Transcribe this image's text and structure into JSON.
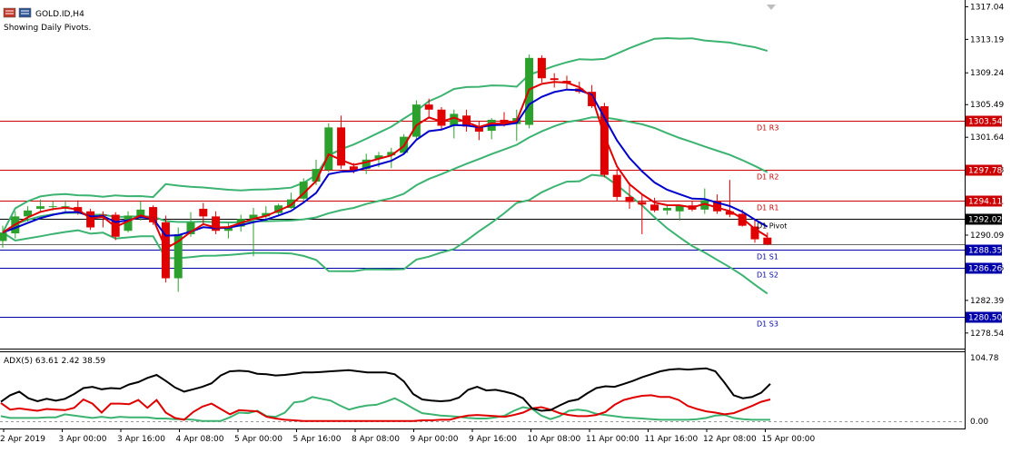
{
  "header": {
    "symbol_label": "GOLD.ID,H4",
    "pivots_note": "Showing Daily Pivots."
  },
  "adx": {
    "label": "ADX(5) 63.61 2.42 38.59",
    "axis_top_label": "104.78",
    "axis_bottom_label": "0.00"
  },
  "colors": {
    "bull": "#2ca02c",
    "bear": "#e00000",
    "ma_fast": "#e00000",
    "ma_slow": "#0000cc",
    "bollinger": "#3cb371",
    "resistance": "#cc0000",
    "support": "#0000aa",
    "pivot": "#000000",
    "adx_main": "#000000",
    "adx_minus": "#e00000",
    "adx_plus": "#3cb371"
  },
  "chart_data": {
    "type": "candlestick",
    "title": "GOLD.ID,H4",
    "y_ticks": [
      "1317.04",
      "1313.19",
      "1309.24",
      "1305.49",
      "1301.64",
      "1297.78",
      "1294.11",
      "1290.09",
      "1286.26",
      "1282.39",
      "1278.54"
    ],
    "ylim": [
      1276.7,
      1317.3
    ],
    "x_ticks": [
      "2 Apr 2019",
      "3 Apr 00:00",
      "3 Apr 16:00",
      "4 Apr 08:00",
      "5 Apr 00:00",
      "5 Apr 16:00",
      "8 Apr 08:00",
      "9 Apr 00:00",
      "9 Apr 16:00",
      "10 Apr 08:00",
      "11 Apr 00:00",
      "11 Apr 16:00",
      "12 Apr 08:00",
      "15 Apr 00:00"
    ],
    "candles": [
      [
        1289.4,
        1291.2,
        1288.6,
        1290.4
      ],
      [
        1290.3,
        1292.9,
        1289.7,
        1292.3
      ],
      [
        1292.3,
        1293.5,
        1291.7,
        1293.0
      ],
      [
        1293.2,
        1294.3,
        1292.9,
        1293.5
      ],
      [
        1293.5,
        1294.1,
        1293.0,
        1293.5
      ],
      [
        1293.5,
        1294.2,
        1292.9,
        1293.5
      ],
      [
        1293.4,
        1294.2,
        1292.5,
        1292.9
      ],
      [
        1292.9,
        1293.2,
        1290.7,
        1291.0
      ],
      [
        1292.5,
        1292.9,
        1291.0,
        1292.4
      ],
      [
        1292.5,
        1292.8,
        1289.5,
        1289.9
      ],
      [
        1290.6,
        1292.9,
        1290.4,
        1292.4
      ],
      [
        1292.3,
        1294.1,
        1291.8,
        1293.1
      ],
      [
        1293.4,
        1293.6,
        1291.3,
        1291.6
      ],
      [
        1291.6,
        1292.4,
        1284.5,
        1285.0
      ],
      [
        1285.0,
        1291.0,
        1283.4,
        1290.2
      ],
      [
        1290.2,
        1292.8,
        1289.9,
        1291.6
      ],
      [
        1293.2,
        1293.9,
        1291.4,
        1292.3
      ],
      [
        1292.3,
        1292.9,
        1290.2,
        1290.6
      ],
      [
        1290.6,
        1291.6,
        1289.7,
        1291.1
      ],
      [
        1291.1,
        1292.5,
        1290.5,
        1292.0
      ],
      [
        1292.0,
        1293.3,
        1287.6,
        1292.5
      ],
      [
        1292.3,
        1293.5,
        1291.7,
        1292.7
      ],
      [
        1292.7,
        1293.8,
        1292.3,
        1293.6
      ],
      [
        1293.3,
        1295.1,
        1293.2,
        1294.3
      ],
      [
        1294.4,
        1296.8,
        1294.2,
        1296.4
      ],
      [
        1296.4,
        1299.0,
        1296.0,
        1297.9
      ],
      [
        1297.8,
        1303.3,
        1297.5,
        1302.8
      ],
      [
        1302.8,
        1304.2,
        1297.9,
        1298.3
      ],
      [
        1298.2,
        1298.6,
        1297.4,
        1297.8
      ],
      [
        1297.9,
        1299.7,
        1297.3,
        1299.0
      ],
      [
        1299.1,
        1299.9,
        1298.1,
        1299.5
      ],
      [
        1299.5,
        1300.4,
        1298.0,
        1299.9
      ],
      [
        1299.8,
        1302.0,
        1299.7,
        1301.7
      ],
      [
        1301.7,
        1306.0,
        1301.3,
        1305.5
      ],
      [
        1305.5,
        1306.2,
        1303.9,
        1304.9
      ],
      [
        1304.9,
        1305.2,
        1302.6,
        1303.0
      ],
      [
        1303.0,
        1304.9,
        1301.5,
        1304.4
      ],
      [
        1304.2,
        1304.9,
        1302.3,
        1302.9
      ],
      [
        1302.8,
        1303.6,
        1301.3,
        1302.3
      ],
      [
        1302.4,
        1303.9,
        1301.4,
        1303.7
      ],
      [
        1303.7,
        1304.6,
        1302.9,
        1303.2
      ],
      [
        1303.2,
        1304.9,
        1301.2,
        1303.9
      ],
      [
        1303.1,
        1311.4,
        1302.7,
        1311.0
      ],
      [
        1311.0,
        1311.3,
        1308.1,
        1308.6
      ],
      [
        1308.6,
        1309.2,
        1307.5,
        1308.4
      ],
      [
        1308.3,
        1308.9,
        1307.2,
        1308.0
      ],
      [
        1307.4,
        1308.2,
        1306.8,
        1307.0
      ],
      [
        1307.0,
        1307.8,
        1305.1,
        1305.3
      ],
      [
        1305.3,
        1305.7,
        1296.9,
        1297.2
      ],
      [
        1297.2,
        1297.9,
        1294.1,
        1294.6
      ],
      [
        1294.6,
        1296.3,
        1293.2,
        1294.0
      ],
      [
        1294.0,
        1294.9,
        1290.2,
        1293.7
      ],
      [
        1293.7,
        1294.5,
        1292.8,
        1293.0
      ],
      [
        1293.0,
        1293.7,
        1292.5,
        1293.3
      ],
      [
        1292.9,
        1293.6,
        1291.8,
        1293.6
      ],
      [
        1293.6,
        1294.1,
        1292.9,
        1293.1
      ],
      [
        1293.1,
        1295.6,
        1292.6,
        1294.2
      ],
      [
        1294.1,
        1294.9,
        1292.6,
        1292.9
      ],
      [
        1292.9,
        1296.6,
        1292.2,
        1292.5
      ],
      [
        1292.6,
        1293.1,
        1291.1,
        1291.2
      ],
      [
        1291.1,
        1291.9,
        1289.2,
        1289.6
      ],
      [
        1289.8,
        1290.4,
        1288.9,
        1289.0
      ]
    ],
    "pivot_levels": [
      {
        "name": "D1 R3",
        "value": 1303.54,
        "kind": "resistance",
        "show_price_tag": true
      },
      {
        "name": "D1 R2",
        "value": 1297.78,
        "kind": "resistance",
        "show_price_tag": true
      },
      {
        "name": "D1 R1",
        "value": 1294.11,
        "kind": "resistance",
        "show_price_tag": true
      },
      {
        "name": "D1 Pivot",
        "value": 1292.02,
        "kind": "pivot",
        "show_price_tag": true
      },
      {
        "name": "D1 S1",
        "value": 1288.35,
        "kind": "support",
        "show_price_tag": true
      },
      {
        "name": "D1 S2",
        "value": 1286.26,
        "kind": "support",
        "show_price_tag": true
      },
      {
        "name": "D1 S3",
        "value": 1280.5,
        "kind": "support",
        "show_price_tag": true
      }
    ],
    "current_price_line": 1289.05,
    "adx": {
      "ylim": [
        0,
        104.78
      ],
      "adx_main": [
        34,
        45,
        51,
        40,
        35,
        39,
        36,
        39,
        47,
        57,
        59,
        55,
        57,
        56,
        63,
        67,
        74,
        79,
        69,
        58,
        51,
        55,
        59,
        65,
        78,
        85,
        86,
        85,
        81,
        80,
        78,
        79,
        81,
        83,
        83,
        84,
        85,
        86,
        87,
        85,
        83,
        83,
        83,
        80,
        68,
        47,
        38,
        36,
        35,
        36,
        41,
        54,
        59,
        53,
        54,
        51,
        47,
        40,
        23,
        19,
        20,
        28,
        35,
        38,
        48,
        57,
        60,
        59,
        64,
        69,
        75,
        80,
        85,
        88,
        89,
        88,
        89,
        90,
        85,
        66,
        45,
        40,
        42,
        49,
        64
      ],
      "di_minus": [
        32,
        21,
        23,
        21,
        19,
        22,
        21,
        20,
        24,
        38,
        31,
        16,
        31,
        31,
        30,
        37,
        24,
        37,
        16,
        7,
        4,
        17,
        26,
        31,
        22,
        13,
        20,
        19,
        18,
        9,
        6,
        4,
        3,
        2,
        2,
        2,
        2,
        2,
        2,
        2,
        2,
        2,
        2,
        2,
        2,
        2,
        3,
        3,
        4,
        4,
        8,
        11,
        12,
        11,
        10,
        9,
        12,
        16,
        23,
        25,
        21,
        15,
        12,
        10,
        10,
        12,
        17,
        29,
        37,
        41,
        44,
        45,
        42,
        42,
        37,
        27,
        22,
        18,
        16,
        13,
        15,
        21,
        27,
        34,
        38
      ],
      "di_plus": [
        10,
        7,
        7,
        7,
        7,
        8,
        8,
        13,
        11,
        9,
        7,
        9,
        7,
        9,
        8,
        8,
        8,
        6,
        6,
        5,
        5,
        4,
        2,
        2,
        2,
        8,
        16,
        15,
        19,
        10,
        9,
        16,
        33,
        35,
        42,
        39,
        36,
        28,
        21,
        25,
        28,
        29,
        34,
        40,
        32,
        23,
        15,
        13,
        11,
        10,
        9,
        7,
        6,
        6,
        8,
        11,
        19,
        25,
        22,
        11,
        5,
        10,
        19,
        21,
        19,
        14,
        12,
        10,
        8,
        7,
        6,
        5,
        4,
        4,
        4,
        4,
        5,
        7,
        11,
        12,
        7,
        5,
        4,
        4,
        4
      ]
    }
  }
}
